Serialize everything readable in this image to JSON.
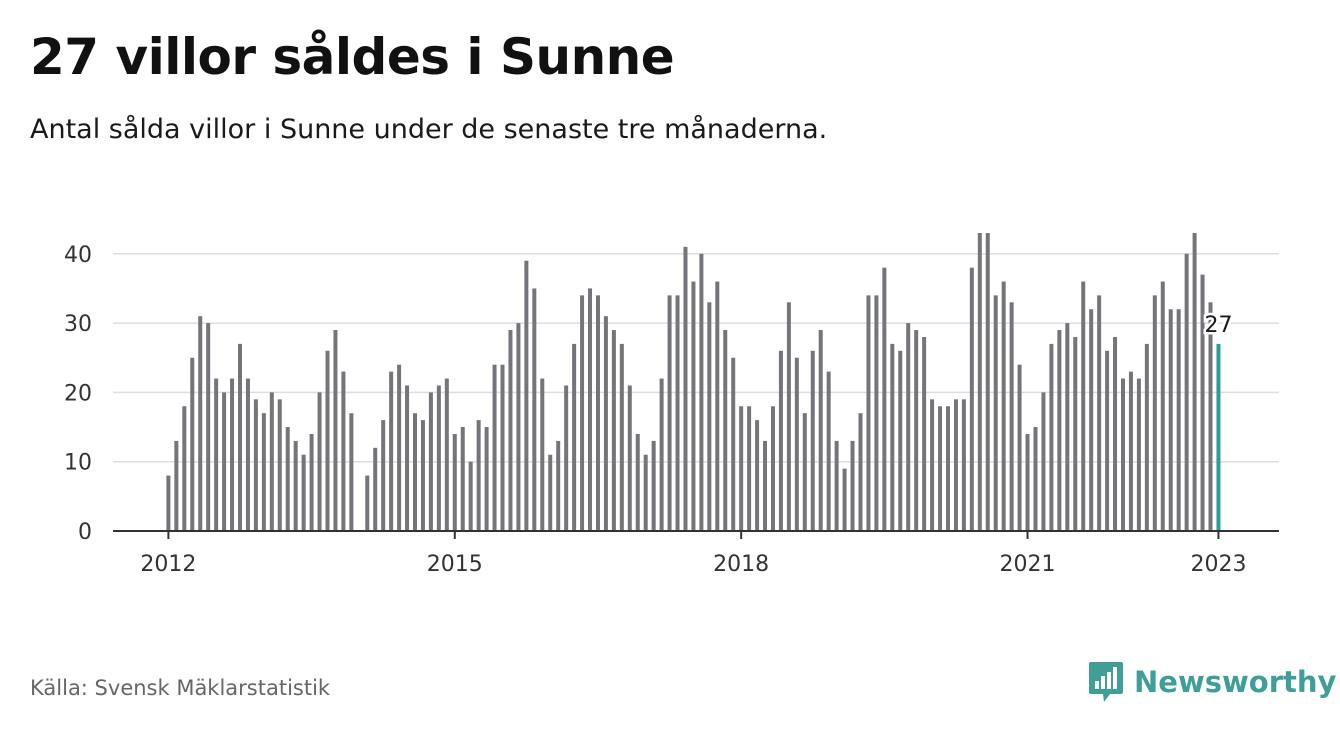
{
  "title": "27 villor såldes i Sunne",
  "subtitle": "Antal sålda villor i Sunne under de senaste tre månaderna.",
  "source": "Källa: Svensk Mäklarstatistik",
  "brand": {
    "name": "Newsworthy",
    "logo_icon": "bar-chart-speech-bubble-icon"
  },
  "colors": {
    "bar": "#74747a",
    "highlight": "#2a9d96",
    "grid": "#dddddd",
    "axis": "#333333",
    "brand": "#3f9f98"
  },
  "chart_data": {
    "type": "bar",
    "x_start": "2012-01",
    "x_interval": "month",
    "x_ticks": [
      "2012",
      "2015",
      "2018",
      "2021",
      "2023"
    ],
    "y_ticks": [
      0,
      10,
      20,
      30,
      40
    ],
    "ylim": [
      0,
      43
    ],
    "grid": true,
    "values": [
      8,
      13,
      18,
      25,
      31,
      30,
      22,
      20,
      22,
      27,
      22,
      19,
      17,
      20,
      19,
      15,
      13,
      11,
      14,
      20,
      26,
      29,
      23,
      17,
      null,
      8,
      12,
      16,
      23,
      24,
      21,
      17,
      16,
      20,
      21,
      22,
      14,
      15,
      10,
      16,
      15,
      24,
      24,
      29,
      30,
      39,
      35,
      22,
      11,
      13,
      21,
      27,
      34,
      35,
      34,
      31,
      29,
      27,
      21,
      14,
      11,
      13,
      22,
      34,
      34,
      41,
      36,
      40,
      33,
      36,
      29,
      25,
      18,
      18,
      16,
      13,
      18,
      26,
      33,
      25,
      17,
      26,
      29,
      23,
      13,
      9,
      13,
      17,
      34,
      34,
      38,
      27,
      26,
      30,
      29,
      28,
      19,
      18,
      18,
      19,
      19,
      38,
      43,
      43,
      34,
      36,
      33,
      24,
      14,
      15,
      20,
      27,
      29,
      30,
      28,
      36,
      32,
      34,
      26,
      28,
      22,
      23,
      22,
      27,
      34,
      36,
      32,
      32,
      40,
      43,
      37,
      33,
      27
    ],
    "highlight_label": "27"
  }
}
